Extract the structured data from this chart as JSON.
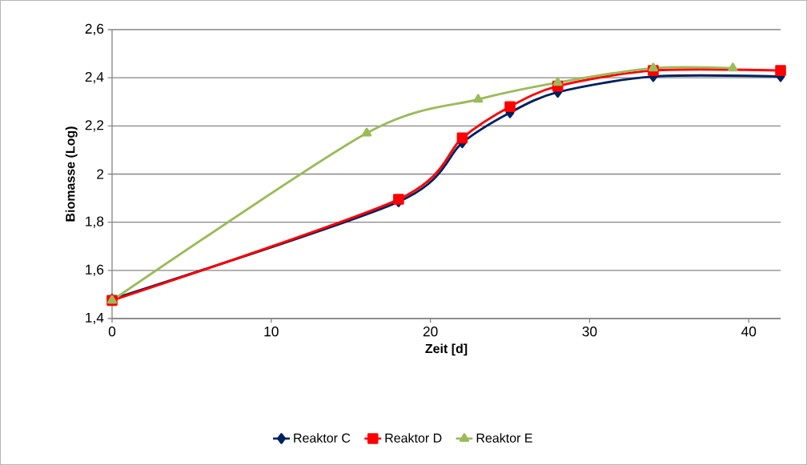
{
  "chart_data": {
    "type": "line",
    "xlabel": "Zeit [d]",
    "ylabel": "Biomasse (Log)",
    "xlim": [
      0,
      42
    ],
    "ylim": [
      1.4,
      2.6
    ],
    "xticks": [
      0,
      10,
      20,
      30,
      40
    ],
    "yticks": [
      {
        "value": 1.4,
        "label": "1,4"
      },
      {
        "value": 1.6,
        "label": "1,6"
      },
      {
        "value": 1.8,
        "label": "1,8"
      },
      {
        "value": 2,
        "label": "2"
      },
      {
        "value": 2.2,
        "label": "2,2"
      },
      {
        "value": 2.4,
        "label": "2,4"
      },
      {
        "value": 2.6,
        "label": "2,6"
      }
    ],
    "grid": "y",
    "legend": "bottom",
    "series": [
      {
        "name": "Reaktor C",
        "color": "#002060",
        "marker": "diamond",
        "x": [
          0,
          18,
          22,
          25,
          28,
          34,
          42
        ],
        "values": [
          1.48,
          1.885,
          2.13,
          2.255,
          2.34,
          2.405,
          2.405
        ]
      },
      {
        "name": "Reaktor D",
        "color": "#ff0000",
        "marker": "square",
        "x": [
          0,
          18,
          22,
          25,
          28,
          34,
          42
        ],
        "values": [
          1.475,
          1.895,
          2.15,
          2.28,
          2.365,
          2.43,
          2.43
        ]
      },
      {
        "name": "Reaktor E",
        "color": "#9bbb59",
        "marker": "triangle",
        "x": [
          0,
          16,
          23,
          28,
          34,
          39
        ],
        "values": [
          1.475,
          2.17,
          2.31,
          2.38,
          2.44,
          2.44
        ]
      }
    ]
  }
}
